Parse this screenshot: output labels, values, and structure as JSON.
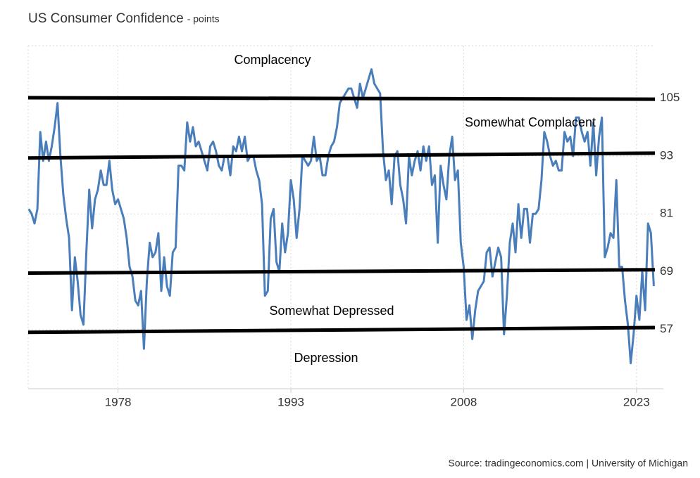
{
  "chart_data": {
    "type": "line",
    "title": "US Consumer Confidence",
    "subtitle": "- points",
    "source": "Source: tradingeconomics.com | University of Michigan",
    "color": "#4a7ebb",
    "xlim": [
      1970.2,
      2024.6
    ],
    "ylim": [
      44.7,
      115.9
    ],
    "xticks": [
      1978,
      1993,
      2008,
      2023
    ],
    "yticks": [
      57,
      69,
      81,
      93,
      105
    ],
    "grid": true,
    "x": [
      1970.25,
      1970.5,
      1970.75,
      1971,
      1971.25,
      1971.5,
      1971.75,
      1972,
      1972.25,
      1972.5,
      1972.75,
      1973,
      1973.25,
      1973.5,
      1973.75,
      1974,
      1974.25,
      1974.5,
      1974.75,
      1975,
      1975.25,
      1975.5,
      1975.75,
      1976,
      1976.25,
      1976.5,
      1976.75,
      1977,
      1977.25,
      1977.5,
      1977.75,
      1978,
      1978.25,
      1978.5,
      1978.75,
      1979,
      1979.25,
      1979.5,
      1979.75,
      1980,
      1980.25,
      1980.5,
      1980.75,
      1981,
      1981.25,
      1981.5,
      1981.75,
      1982,
      1982.25,
      1982.5,
      1982.75,
      1983,
      1983.25,
      1983.5,
      1983.75,
      1984,
      1984.25,
      1984.5,
      1984.75,
      1985,
      1985.25,
      1985.5,
      1985.75,
      1986,
      1986.25,
      1986.5,
      1986.75,
      1987,
      1987.25,
      1987.5,
      1987.75,
      1988,
      1988.25,
      1988.5,
      1988.75,
      1989,
      1989.25,
      1989.5,
      1989.75,
      1990,
      1990.25,
      1990.5,
      1990.75,
      1991,
      1991.25,
      1991.5,
      1991.75,
      1992,
      1992.25,
      1992.5,
      1992.75,
      1993,
      1993.25,
      1993.5,
      1993.75,
      1994,
      1994.25,
      1994.5,
      1994.75,
      1995,
      1995.25,
      1995.5,
      1995.75,
      1996,
      1996.25,
      1996.5,
      1996.75,
      1997,
      1997.25,
      1997.5,
      1997.75,
      1998,
      1998.25,
      1998.5,
      1998.75,
      1999,
      1999.25,
      1999.5,
      1999.75,
      2000,
      2000.25,
      2000.5,
      2000.75,
      2001,
      2001.25,
      2001.5,
      2001.75,
      2002,
      2002.25,
      2002.5,
      2002.75,
      2003,
      2003.25,
      2003.5,
      2003.75,
      2004,
      2004.25,
      2004.5,
      2004.75,
      2005,
      2005.25,
      2005.5,
      2005.75,
      2006,
      2006.25,
      2006.5,
      2006.75,
      2007,
      2007.25,
      2007.5,
      2007.75,
      2008,
      2008.25,
      2008.5,
      2008.75,
      2009,
      2009.25,
      2009.5,
      2009.75,
      2010,
      2010.25,
      2010.5,
      2010.75,
      2011,
      2011.25,
      2011.5,
      2011.75,
      2012,
      2012.25,
      2012.5,
      2012.75,
      2013,
      2013.25,
      2013.5,
      2013.75,
      2014,
      2014.25,
      2014.5,
      2014.75,
      2015,
      2015.25,
      2015.5,
      2015.75,
      2016,
      2016.25,
      2016.5,
      2016.75,
      2017,
      2017.25,
      2017.5,
      2017.75,
      2018,
      2018.25,
      2018.5,
      2018.75,
      2019,
      2019.25,
      2019.5,
      2019.75,
      2020,
      2020.25,
      2020.5,
      2020.75,
      2021,
      2021.25,
      2021.5,
      2021.75,
      2022,
      2022.25,
      2022.5,
      2022.75,
      2023,
      2023.25,
      2023.5,
      2023.75,
      2024,
      2024.25,
      2024.5
    ],
    "values": [
      82,
      81,
      79,
      82,
      98,
      92,
      96,
      92,
      95,
      99,
      104,
      93,
      85,
      80,
      76,
      61,
      72,
      67,
      60,
      58,
      73,
      86,
      78,
      84,
      86,
      90,
      87,
      87,
      92,
      86,
      83,
      84,
      82,
      80,
      76,
      70,
      68,
      63,
      62,
      65,
      53,
      67,
      75,
      72,
      73,
      77,
      65,
      72,
      66,
      64,
      73,
      74,
      91,
      91,
      90,
      100,
      96,
      99,
      95,
      96,
      94,
      92,
      90,
      95,
      96,
      94,
      91,
      90,
      93,
      93,
      89,
      95,
      94,
      97,
      94,
      97,
      92,
      93,
      93,
      90,
      88,
      83,
      64,
      65,
      80,
      82,
      71,
      69,
      79,
      73,
      77,
      88,
      84,
      76,
      82,
      93,
      92,
      91,
      92,
      97,
      92,
      93,
      89,
      89,
      93,
      95,
      96,
      99,
      104,
      105,
      106,
      107,
      107,
      105,
      103,
      108,
      105,
      107,
      109,
      111,
      108,
      107,
      106,
      94,
      88,
      90,
      83,
      93,
      94,
      87,
      84,
      79,
      93,
      89,
      92,
      94,
      90,
      95,
      92,
      95,
      87,
      89,
      75,
      91,
      87,
      84,
      93,
      97,
      88,
      90,
      75,
      70,
      59,
      62,
      55,
      61,
      65,
      66,
      67,
      73,
      74,
      68,
      71,
      74,
      72,
      56,
      64,
      75,
      79,
      73,
      83,
      76,
      82,
      82,
      75,
      81,
      81,
      82,
      88,
      98,
      96,
      93,
      91,
      92,
      90,
      90,
      98,
      96,
      97,
      93,
      101,
      101,
      98,
      96,
      98,
      91,
      100,
      89,
      97,
      101,
      72,
      74,
      77,
      76,
      88,
      70,
      70,
      63,
      58,
      50,
      56,
      64,
      59,
      69,
      61,
      79,
      77,
      66
    ],
    "reference_lines": [
      {
        "x": [
          1970.2,
          2024.6
        ],
        "y": [
          105.1,
          104.8
        ]
      },
      {
        "x": [
          1970.2,
          2024.6
        ],
        "y": [
          92.6,
          93.6
        ]
      },
      {
        "x": [
          1970.2,
          2024.6
        ],
        "y": [
          68.7,
          69.4
        ]
      },
      {
        "x": [
          1970.2,
          2024.6
        ],
        "y": [
          56.4,
          57.4
        ]
      }
    ],
    "reference_color": "#000000",
    "annotations": [
      "Complacency",
      "Somewhat Complacent",
      "Somewhat Depressed",
      "Depression"
    ]
  }
}
